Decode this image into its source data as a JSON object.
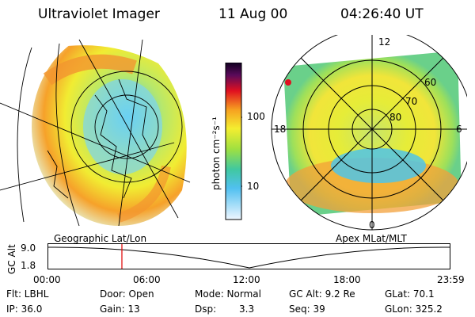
{
  "header": {
    "title": "Ultraviolet Imager",
    "date": "11 Aug 00",
    "time": "04:26:40 UT"
  },
  "colorbar": {
    "label": "photon cm⁻²s⁻¹",
    "ticks": [
      "100",
      "10"
    ]
  },
  "geo_map": {
    "label": "Geographic Lat/Lon"
  },
  "polar_map": {
    "label": "Apex MLat/MLT",
    "mlt_labels": [
      "12",
      "18",
      "6",
      "0"
    ],
    "lat_labels": [
      "60",
      "70",
      "80"
    ]
  },
  "timeline": {
    "axis_label": "GC Alt",
    "ymax": "9.0",
    "ymin": "1.8",
    "ticks": [
      "00:00",
      "06:00",
      "12:00",
      "18:00",
      "23:59"
    ],
    "marker_time_hours": 4.44,
    "marker_color": "#e00000"
  },
  "info": {
    "filter": "Flt: LBHL",
    "door": "Door: Open",
    "mode": "Mode: Normal",
    "gc_alt": "GC Alt: 9.2 Re",
    "glat": "GLat:  70.1",
    "ip": "IP: 36.0",
    "gain": "Gain: 13",
    "dsp_label": "Dsp:",
    "dsp_value": "3.3",
    "seq": "Seq: 39",
    "glon": "GLon: 325.2"
  }
}
